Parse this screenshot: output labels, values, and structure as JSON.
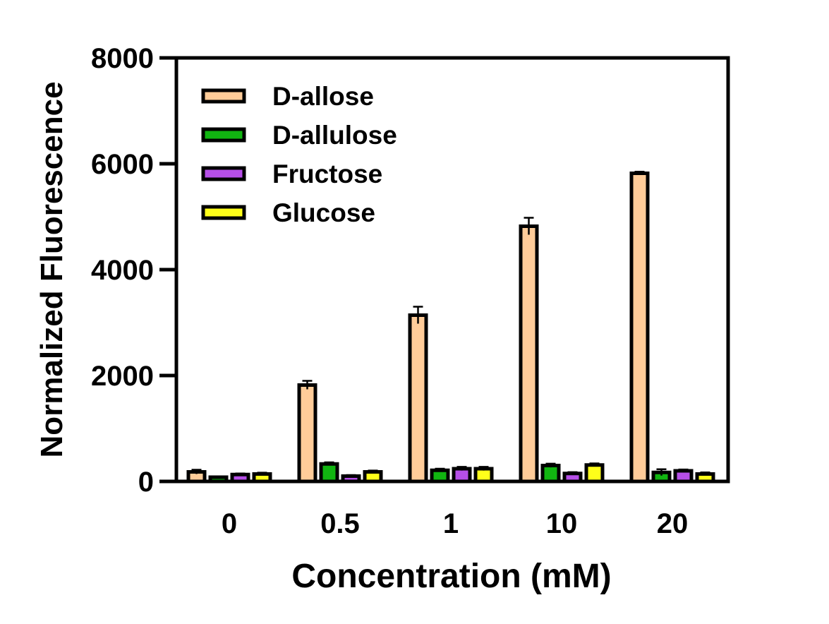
{
  "chart_data": {
    "type": "bar",
    "title": "",
    "xlabel": "Concentration (mM)",
    "ylabel": "Normalized Fluorescence",
    "categories": [
      "0",
      "0.5",
      "1",
      "10",
      "20"
    ],
    "ylim": [
      0,
      8000
    ],
    "yticks": [
      0,
      2000,
      4000,
      6000,
      8000
    ],
    "grid": false,
    "legend_position": "top-left",
    "series": [
      {
        "name": "D-allose",
        "color": "#FFCC99",
        "values": [
          180,
          1820,
          3140,
          4820,
          5820
        ],
        "errors": [
          40,
          80,
          160,
          160,
          30
        ]
      },
      {
        "name": "D-allulose",
        "color": "#11B511",
        "values": [
          80,
          330,
          210,
          300,
          170
        ],
        "errors": [
          15,
          30,
          30,
          35,
          60
        ]
      },
      {
        "name": "Fructose",
        "color": "#B64FE8",
        "values": [
          130,
          100,
          240,
          150,
          200
        ],
        "errors": [
          20,
          20,
          35,
          25,
          25
        ]
      },
      {
        "name": "Glucose",
        "color": "#FFFF1A",
        "values": [
          140,
          180,
          240,
          310,
          140
        ],
        "errors": [
          25,
          25,
          35,
          30,
          30
        ]
      }
    ]
  }
}
